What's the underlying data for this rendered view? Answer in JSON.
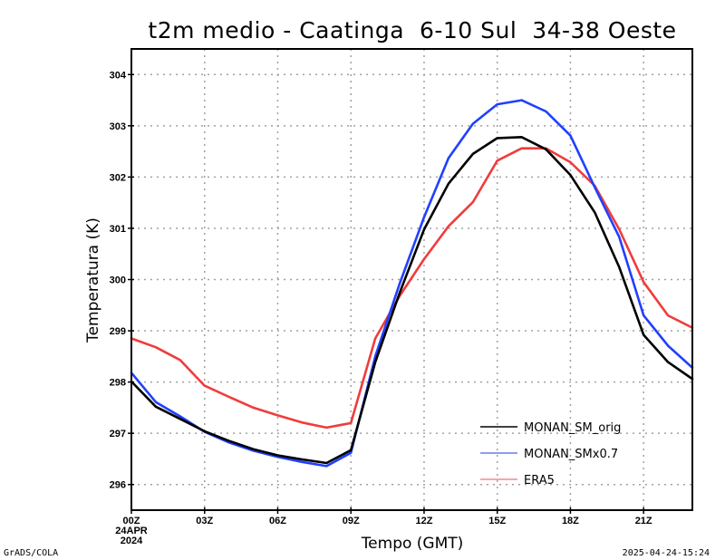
{
  "chart_data": {
    "type": "line",
    "title": "t2m medio - Caatinga  6-10 Sul  34-38 Oeste",
    "xlabel": "Tempo (GMT)",
    "ylabel": "Temperatura (K)",
    "x": [
      0,
      1,
      2,
      3,
      4,
      5,
      6,
      7,
      8,
      9,
      10,
      11,
      12,
      13,
      14,
      15,
      16,
      17,
      18,
      19,
      20,
      21,
      22,
      23
    ],
    "xlim": [
      0,
      23
    ],
    "ylim": [
      295.5,
      304.5
    ],
    "xticks": [
      {
        "value": 0,
        "label": "00Z",
        "sublabels": [
          "24APR",
          "2024"
        ]
      },
      {
        "value": 3,
        "label": "03Z"
      },
      {
        "value": 6,
        "label": "06Z"
      },
      {
        "value": 9,
        "label": "09Z"
      },
      {
        "value": 12,
        "label": "12Z"
      },
      {
        "value": 15,
        "label": "15Z"
      },
      {
        "value": 18,
        "label": "18Z"
      },
      {
        "value": 21,
        "label": "21Z"
      }
    ],
    "yticks": [
      296,
      297,
      298,
      299,
      300,
      301,
      302,
      303,
      304
    ],
    "grid": true,
    "legend_position": "bottom-right",
    "series": [
      {
        "name": "MONAN_SM_orig",
        "color": "#000000",
        "values": [
          298.01,
          297.52,
          297.28,
          297.04,
          296.85,
          296.69,
          296.57,
          296.49,
          296.42,
          296.67,
          298.39,
          299.74,
          300.98,
          301.87,
          302.45,
          302.76,
          302.78,
          302.54,
          302.04,
          301.31,
          300.24,
          298.92,
          298.39,
          298.06
        ]
      },
      {
        "name": "MONAN_SMx0.7",
        "color": "#2040ff",
        "values": [
          298.18,
          297.61,
          297.33,
          297.03,
          296.82,
          296.66,
          296.54,
          296.44,
          296.36,
          296.62,
          298.5,
          299.92,
          301.22,
          302.37,
          303.04,
          303.42,
          303.5,
          303.28,
          302.81,
          301.8,
          300.83,
          299.3,
          298.71,
          298.28
        ]
      },
      {
        "name": "ERA5",
        "color": "#f03c3c",
        "values": [
          298.85,
          298.68,
          298.43,
          297.93,
          297.71,
          297.5,
          297.35,
          297.21,
          297.11,
          297.2,
          298.85,
          299.68,
          300.4,
          301.04,
          301.51,
          302.32,
          302.56,
          302.56,
          302.29,
          301.83,
          300.98,
          299.95,
          299.3,
          299.06
        ]
      }
    ]
  },
  "footer": {
    "left": "GrADS/COLA",
    "right": "2025-04-24-15:24"
  },
  "legend_colors": {
    "MONAN_SM_orig": "#000000",
    "MONAN_SMx0.7": "#6a7cf0",
    "ERA5": "#f08a8a"
  }
}
